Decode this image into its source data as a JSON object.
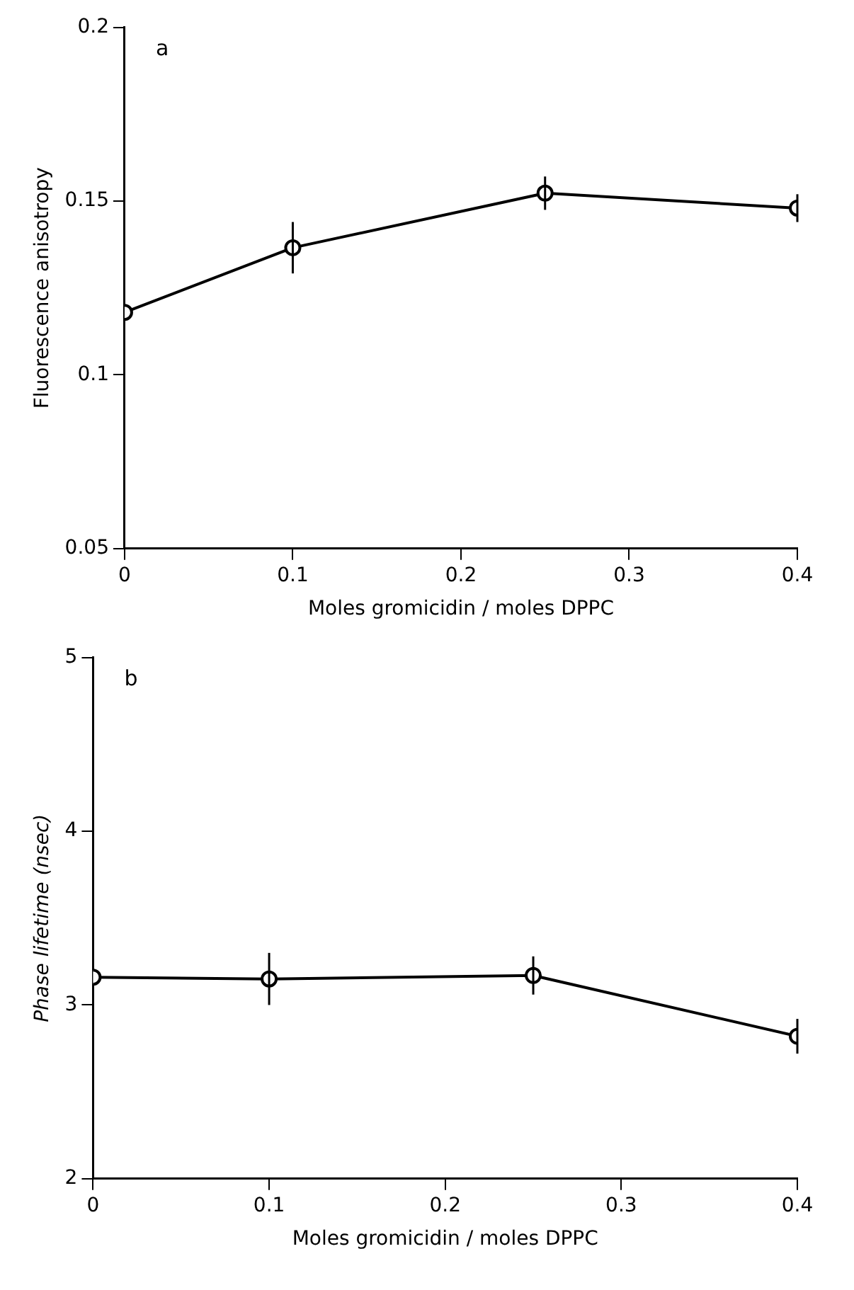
{
  "chart_data": [
    {
      "type": "line",
      "annotations": [
        "a"
      ],
      "xlabel": "Moles gromicidin / moles DPPC",
      "ylabel": "Fluorescence anisotropy",
      "x": [
        0,
        0.1,
        0.25,
        0.4
      ],
      "series": [
        {
          "color": "#000000",
          "values": [
            0.118,
            0.1366,
            0.1523,
            0.148
          ],
          "errors": [
            null,
            0.0074,
            0.0048,
            0.004
          ]
        }
      ],
      "xlim": [
        0,
        0.4
      ],
      "xticks": [
        0,
        0.1,
        0.2,
        0.3,
        0.4
      ],
      "ylim": [
        0.05,
        0.2
      ],
      "yticks": [
        0.05,
        0.1,
        0.15,
        0.2
      ],
      "grid": false,
      "legend": false,
      "marker": "circle",
      "line_style": "solid"
    },
    {
      "type": "line",
      "annotations": [
        "b"
      ],
      "xlabel": "Moles gromicidin / moles DPPC",
      "ylabel": "Phase lifetime (nsec)",
      "x": [
        0,
        0.1,
        0.25,
        0.4
      ],
      "series": [
        {
          "color": "#000000",
          "values": [
            3.16,
            3.15,
            3.17,
            2.82
          ],
          "errors": [
            null,
            0.15,
            0.11,
            0.1
          ]
        }
      ],
      "xlim": [
        0,
        0.4
      ],
      "xticks": [
        0,
        0.1,
        0.2,
        0.3,
        0.4
      ],
      "ylim": [
        2,
        5
      ],
      "yticks": [
        2,
        3,
        4,
        5
      ],
      "grid": false,
      "legend": false,
      "marker": "circle",
      "line_style": "solid"
    }
  ]
}
